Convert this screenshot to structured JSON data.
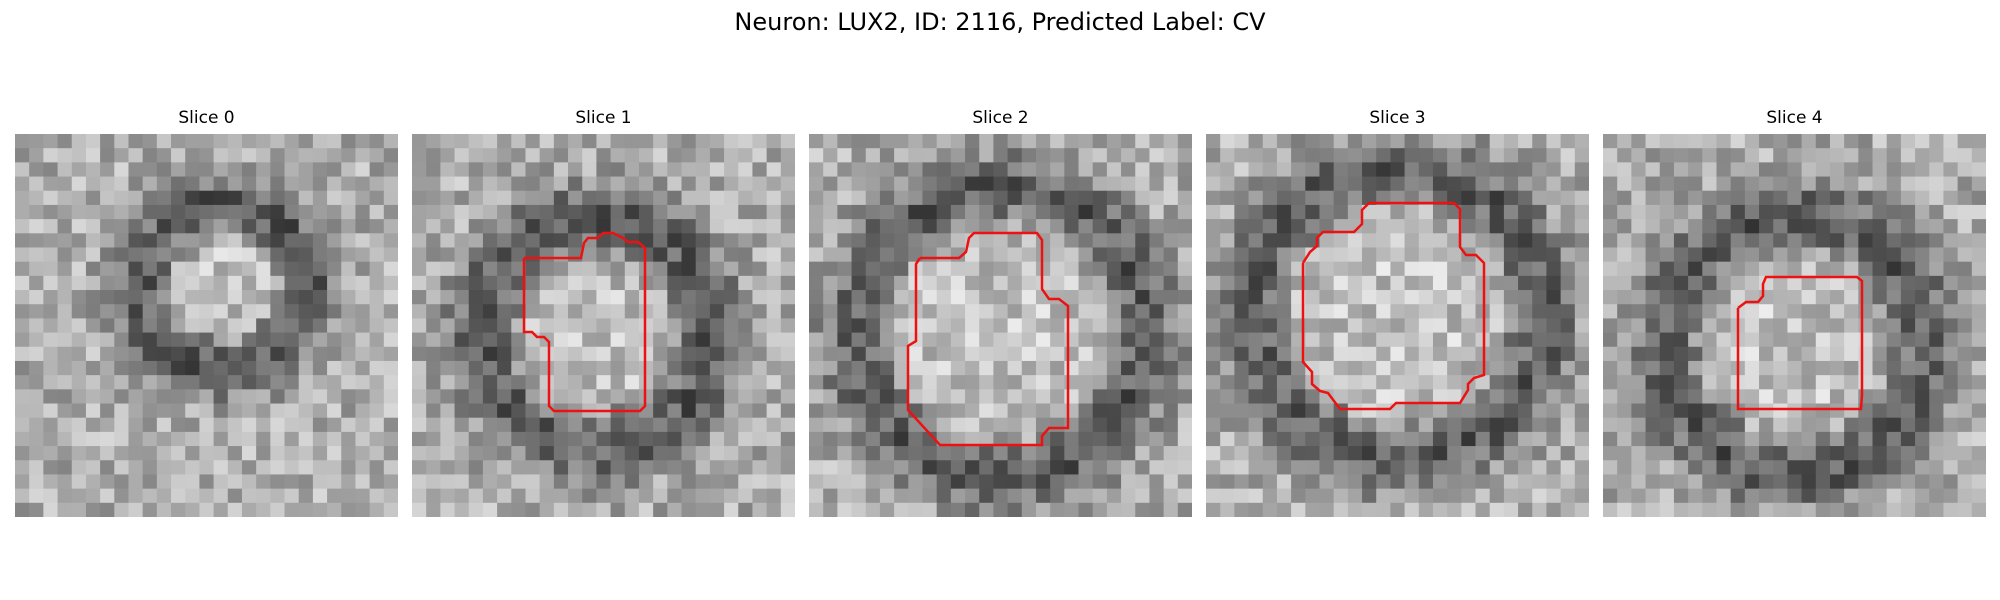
{
  "figure": {
    "title": "Neuron: LUX2, ID: 2116, Predicted Label: CV",
    "outline_color": "#ee1111"
  },
  "slices": [
    {
      "title": "Slice 0",
      "seed": 11,
      "has_outline": false
    },
    {
      "title": "Slice 1",
      "seed": 23,
      "has_outline": true
    },
    {
      "title": "Slice 2",
      "seed": 37,
      "has_outline": true
    },
    {
      "title": "Slice 3",
      "seed": 41,
      "has_outline": true
    },
    {
      "title": "Slice 4",
      "seed": 59,
      "has_outline": true
    }
  ]
}
